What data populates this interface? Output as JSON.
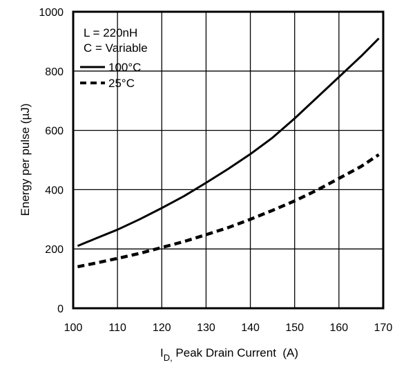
{
  "chart_data": {
    "type": "line",
    "title": "",
    "xlabel": {
      "main": "I",
      "subscript": "D,",
      "rest": " Peak Drain Current  (A)"
    },
    "ylabel": "Energy per pulse (µJ)",
    "xlim": [
      100,
      170
    ],
    "ylim": [
      0,
      1000
    ],
    "xticks": [
      "100",
      "110",
      "120",
      "130",
      "140",
      "150",
      "160",
      "170"
    ],
    "yticks": [
      "0",
      "200",
      "400",
      "600",
      "800",
      "1000"
    ],
    "grid": true,
    "legend_placement": "top-left",
    "conditions": [
      "L = 220nH",
      "C = Variable"
    ],
    "series": [
      {
        "name": "100°C",
        "style": "solid",
        "color": "#000000",
        "x": [
          101,
          105,
          110,
          115,
          120,
          125,
          130,
          135,
          140,
          145,
          150,
          155,
          160,
          165,
          169
        ],
        "y": [
          210,
          235,
          265,
          300,
          338,
          378,
          423,
          470,
          520,
          575,
          640,
          710,
          780,
          850,
          910
        ]
      },
      {
        "name": "25°C",
        "style": "dashed",
        "color": "#000000",
        "x": [
          101,
          105,
          110,
          115,
          120,
          125,
          130,
          135,
          140,
          145,
          150,
          155,
          160,
          165,
          169
        ],
        "y": [
          140,
          152,
          168,
          185,
          205,
          225,
          248,
          272,
          300,
          330,
          362,
          398,
          438,
          478,
          518
        ]
      }
    ]
  }
}
